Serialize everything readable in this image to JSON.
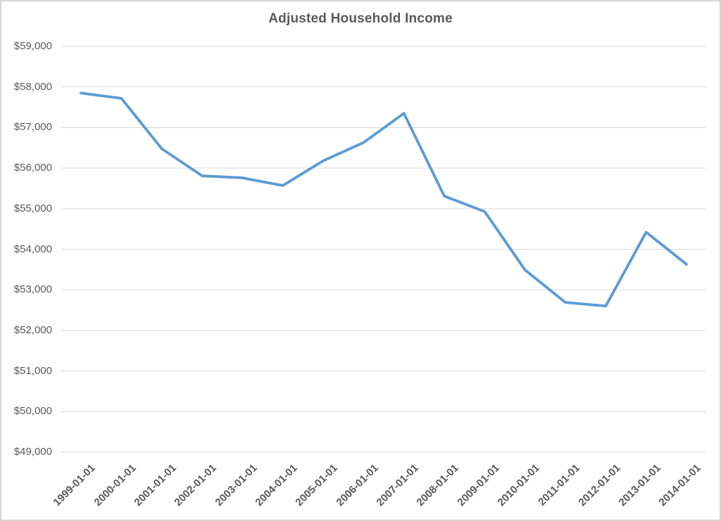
{
  "chart_data": {
    "type": "line",
    "title": "Adjusted Household Income",
    "categories": [
      "1999-01-01",
      "2000-01-01",
      "2001-01-01",
      "2002-01-01",
      "2003-01-01",
      "2004-01-01",
      "2005-01-01",
      "2006-01-01",
      "2007-01-01",
      "2008-01-01",
      "2009-01-01",
      "2010-01-01",
      "2011-01-01",
      "2012-01-01",
      "2013-01-01",
      "2014-01-01"
    ],
    "values": [
      57850,
      57720,
      56480,
      55810,
      55760,
      55570,
      56180,
      56630,
      57350,
      55310,
      54930,
      53490,
      52690,
      52600,
      54420,
      53630
    ],
    "xlabel": "",
    "ylabel": "",
    "ylim": [
      49000,
      59000
    ],
    "yticks": [
      59000,
      58000,
      57000,
      56000,
      55000,
      54000,
      53000,
      52000,
      51000,
      50000,
      49000
    ],
    "ytick_labels": [
      "$59,000",
      "$58,000",
      "$57,000",
      "$56,000",
      "$55,000",
      "$54,000",
      "$53,000",
      "$52,000",
      "$51,000",
      "$50,000",
      "$49,000"
    ],
    "x_label_rotation": 45,
    "grid": true,
    "legend": "none",
    "colors": {
      "line": "#5B9BD5",
      "gridline": "#D9D9D9",
      "text": "#595959",
      "title": "#595959",
      "background": "#FFFFFF",
      "frame_border": "#D6D6D6"
    }
  }
}
